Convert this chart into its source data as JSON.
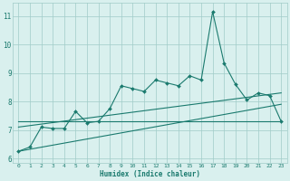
{
  "xlabel": "Humidex (Indice chaleur)",
  "background_color": "#d9f0ee",
  "grid_color": "#a0ccc8",
  "line_color": "#1a7a6e",
  "xlim": [
    -0.5,
    23.5
  ],
  "ylim": [
    5.85,
    11.45
  ],
  "yticks": [
    6,
    7,
    8,
    9,
    10,
    11
  ],
  "xticks": [
    0,
    1,
    2,
    3,
    4,
    5,
    6,
    7,
    8,
    9,
    10,
    11,
    12,
    13,
    14,
    15,
    16,
    17,
    18,
    19,
    20,
    21,
    22,
    23
  ],
  "line1_x": [
    0,
    1,
    2,
    3,
    4,
    5,
    6,
    7,
    8,
    9,
    10,
    11,
    12,
    13,
    14,
    15,
    16,
    17,
    18,
    19,
    20,
    21,
    22,
    23
  ],
  "line1_y": [
    6.25,
    6.4,
    7.1,
    7.05,
    7.05,
    7.65,
    7.25,
    7.3,
    7.75,
    8.55,
    8.45,
    8.35,
    8.75,
    8.65,
    8.55,
    8.9,
    8.75,
    11.15,
    9.35,
    8.6,
    8.05,
    8.3,
    8.2,
    7.3
  ],
  "line2_x": [
    0,
    23
  ],
  "line2_y": [
    6.25,
    7.9
  ],
  "line3_x": [
    0,
    23
  ],
  "line3_y": [
    7.1,
    8.3
  ],
  "line4_x": [
    0,
    23
  ],
  "line4_y": [
    7.3,
    7.3
  ]
}
